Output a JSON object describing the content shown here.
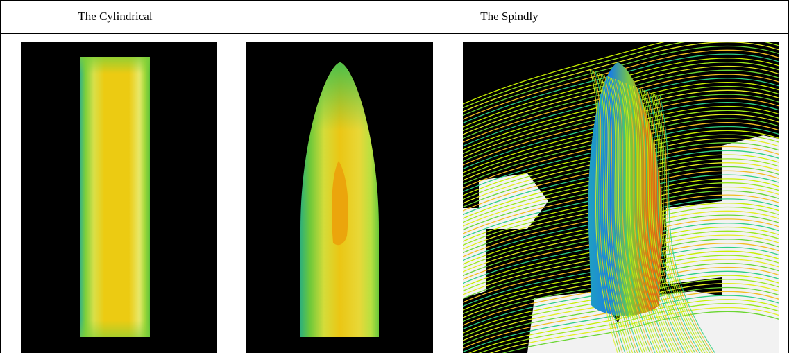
{
  "table": {
    "header": [
      "The Cylindrical",
      "The Spindly"
    ]
  }
}
